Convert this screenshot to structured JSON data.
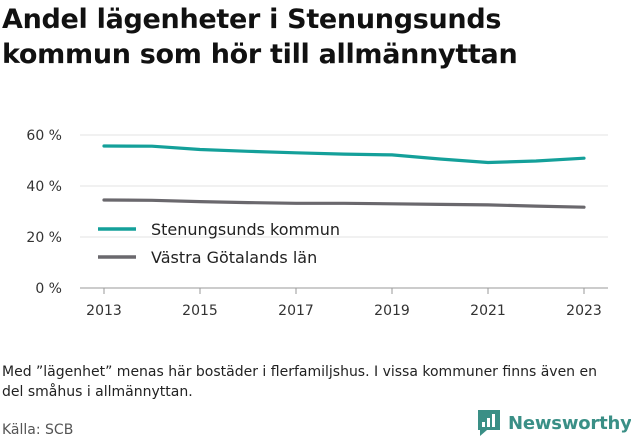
{
  "title": "Andel lägenheter i Stenungsunds kommun som hör till allmännyttan",
  "note": "Med ”lägenhet” menas här bostäder i flerfamiljshus. I vissa kommuner finns även en del småhus i allmännyttan.",
  "source": "Källa: SCB",
  "logo": {
    "name": "Newsworthy",
    "icon": "newsworthy-chat-chart-icon"
  },
  "colors": {
    "series_1": "#14a09a",
    "series_2": "#6a686d",
    "grid": "#e3e3e3",
    "axis": "#555555",
    "logo": "#3a8f86"
  },
  "chart_data": {
    "type": "line",
    "title": "Andel lägenheter i Stenungsunds kommun som hör till allmännyttan",
    "x": [
      2013,
      2014,
      2015,
      2016,
      2017,
      2018,
      2019,
      2020,
      2021,
      2022,
      2023
    ],
    "series": [
      {
        "name": "Stenungsunds kommun",
        "values": [
          55.7,
          55.6,
          54.3,
          53.6,
          53.0,
          52.5,
          52.2,
          50.6,
          49.2,
          49.8,
          50.9
        ]
      },
      {
        "name": "Västra Götalands län",
        "values": [
          34.5,
          34.4,
          33.9,
          33.5,
          33.2,
          33.2,
          33.0,
          32.8,
          32.6,
          32.1,
          31.7
        ]
      }
    ],
    "y_ticks": [
      "0 %",
      "20 %",
      "40 %",
      "60 %"
    ],
    "y_tick_values": [
      0,
      20,
      40,
      60
    ],
    "x_ticks": [
      "2013",
      "2015",
      "2017",
      "2019",
      "2021",
      "2023"
    ],
    "x_tick_values": [
      2013,
      2015,
      2017,
      2019,
      2021,
      2023
    ],
    "ylim": [
      0,
      60
    ],
    "xlim": [
      2013,
      2023
    ],
    "xlabel": "",
    "ylabel": "",
    "grid": "horizontal",
    "legend_position": "inside-left"
  }
}
